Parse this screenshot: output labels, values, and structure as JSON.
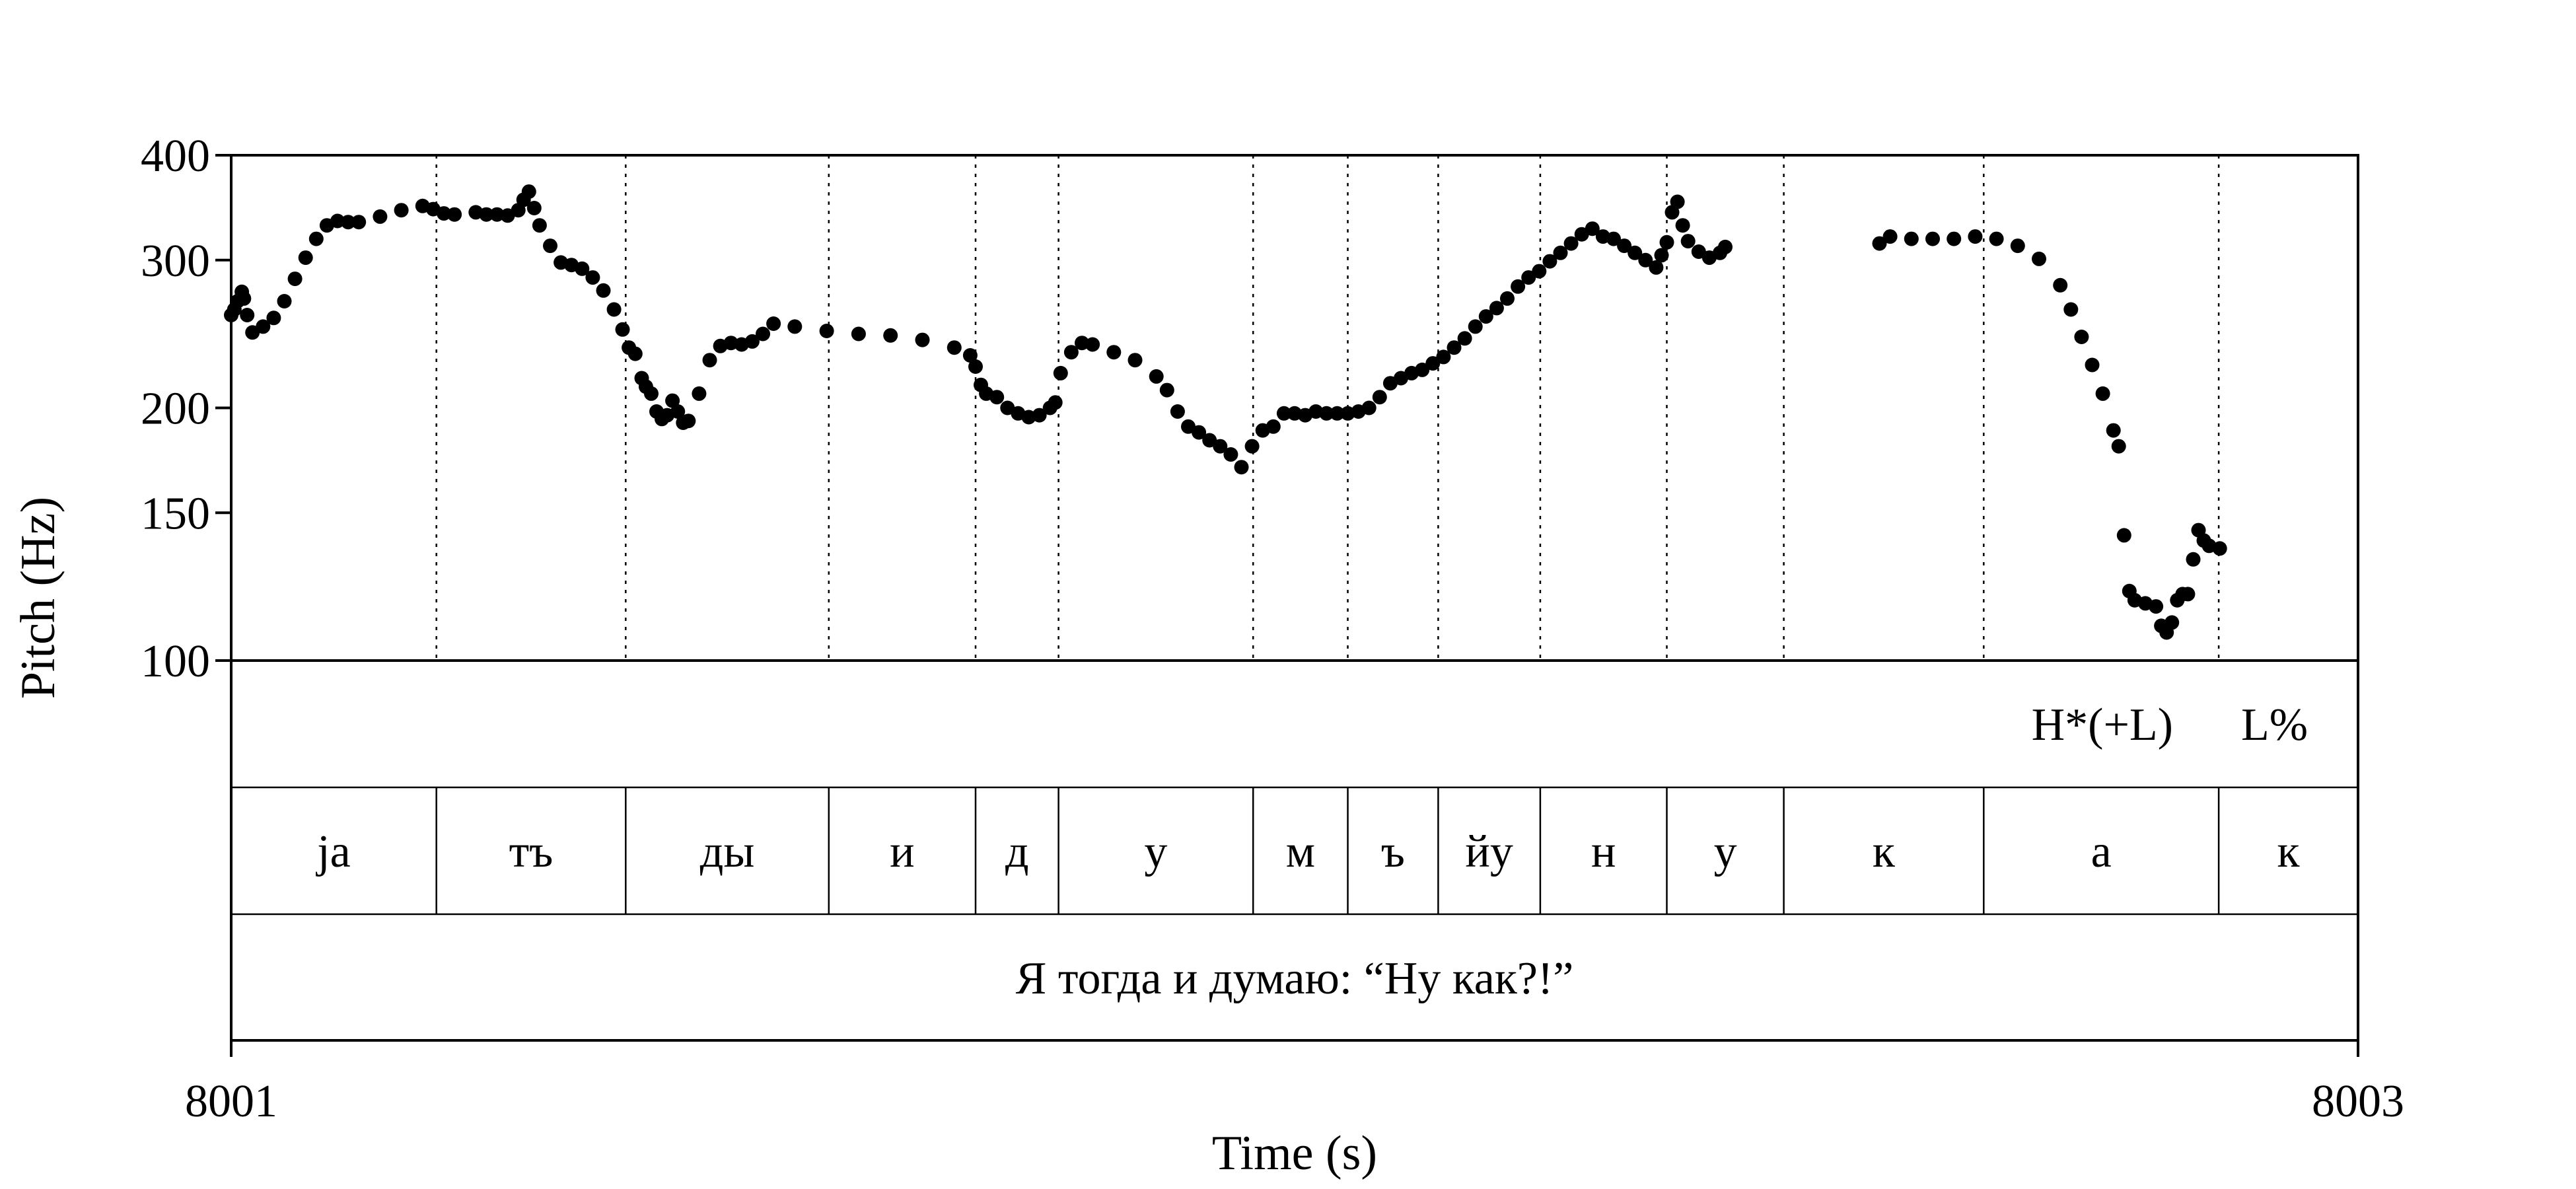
{
  "chart_data": {
    "type": "scatter",
    "xlabel": "Time (s)",
    "ylabel": "Pitch (Hz)",
    "y_scale": "log",
    "xlim": [
      8001,
      8003
    ],
    "ylim": [
      100,
      400
    ],
    "x_tick_labels": [
      "8001",
      "8003"
    ],
    "y_ticks": [
      100,
      150,
      200,
      300,
      400
    ],
    "y_tick_labels": [
      "100",
      "150",
      "200",
      "300",
      "400"
    ],
    "pitch_contour": [
      [
        8001.0,
        258
      ],
      [
        8001.003,
        262
      ],
      [
        8001.006,
        268
      ],
      [
        8001.01,
        275
      ],
      [
        8001.012,
        270
      ],
      [
        8001.015,
        258
      ],
      [
        8001.02,
        246
      ],
      [
        8001.03,
        250
      ],
      [
        8001.04,
        256
      ],
      [
        8001.05,
        268
      ],
      [
        8001.06,
        285
      ],
      [
        8001.07,
        302
      ],
      [
        8001.08,
        318
      ],
      [
        8001.09,
        330
      ],
      [
        8001.1,
        334
      ],
      [
        8001.11,
        333
      ],
      [
        8001.12,
        333
      ],
      [
        8001.14,
        338
      ],
      [
        8001.16,
        344
      ],
      [
        8001.18,
        348
      ],
      [
        8001.19,
        345
      ],
      [
        8001.2,
        341
      ],
      [
        8001.21,
        340
      ],
      [
        8001.23,
        342
      ],
      [
        8001.24,
        340
      ],
      [
        8001.25,
        340
      ],
      [
        8001.26,
        339
      ],
      [
        8001.27,
        344
      ],
      [
        8001.275,
        354
      ],
      [
        8001.28,
        362
      ],
      [
        8001.285,
        346
      ],
      [
        8001.29,
        330
      ],
      [
        8001.3,
        312
      ],
      [
        8001.31,
        298
      ],
      [
        8001.32,
        296
      ],
      [
        8001.33,
        293
      ],
      [
        8001.34,
        286
      ],
      [
        8001.35,
        276
      ],
      [
        8001.36,
        262
      ],
      [
        8001.368,
        248
      ],
      [
        8001.374,
        236
      ],
      [
        8001.38,
        232
      ],
      [
        8001.386,
        217
      ],
      [
        8001.39,
        212
      ],
      [
        8001.395,
        208
      ],
      [
        8001.4,
        198
      ],
      [
        8001.405,
        194
      ],
      [
        8001.41,
        196
      ],
      [
        8001.415,
        204
      ],
      [
        8001.42,
        198
      ],
      [
        8001.425,
        192
      ],
      [
        8001.43,
        193
      ],
      [
        8001.44,
        208
      ],
      [
        8001.45,
        228
      ],
      [
        8001.46,
        237
      ],
      [
        8001.47,
        239
      ],
      [
        8001.48,
        238
      ],
      [
        8001.49,
        240
      ],
      [
        8001.5,
        245
      ],
      [
        8001.51,
        252
      ],
      [
        8001.53,
        250
      ],
      [
        8001.56,
        247
      ],
      [
        8001.59,
        245
      ],
      [
        8001.62,
        244
      ],
      [
        8001.65,
        241
      ],
      [
        8001.68,
        236
      ],
      [
        8001.695,
        231
      ],
      [
        8001.7,
        224
      ],
      [
        8001.705,
        213
      ],
      [
        8001.71,
        208
      ],
      [
        8001.72,
        206
      ],
      [
        8001.73,
        200
      ],
      [
        8001.74,
        197
      ],
      [
        8001.75,
        195
      ],
      [
        8001.76,
        196
      ],
      [
        8001.77,
        200
      ],
      [
        8001.775,
        203
      ],
      [
        8001.78,
        220
      ],
      [
        8001.79,
        233
      ],
      [
        8001.8,
        239
      ],
      [
        8001.81,
        238
      ],
      [
        8001.83,
        233
      ],
      [
        8001.85,
        228
      ],
      [
        8001.87,
        218
      ],
      [
        8001.88,
        210
      ],
      [
        8001.89,
        198
      ],
      [
        8001.9,
        190
      ],
      [
        8001.91,
        187
      ],
      [
        8001.92,
        183
      ],
      [
        8001.93,
        180
      ],
      [
        8001.94,
        176
      ],
      [
        8001.95,
        170
      ],
      [
        8001.96,
        180
      ],
      [
        8001.97,
        188
      ],
      [
        8001.98,
        190
      ],
      [
        8001.99,
        197
      ],
      [
        8002.0,
        197
      ],
      [
        8002.01,
        196
      ],
      [
        8002.02,
        198
      ],
      [
        8002.03,
        197
      ],
      [
        8002.04,
        197
      ],
      [
        8002.05,
        197
      ],
      [
        8002.06,
        198
      ],
      [
        8002.07,
        200
      ],
      [
        8002.08,
        206
      ],
      [
        8002.09,
        214
      ],
      [
        8002.1,
        217
      ],
      [
        8002.11,
        220
      ],
      [
        8002.12,
        222
      ],
      [
        8002.13,
        226
      ],
      [
        8002.14,
        230
      ],
      [
        8002.15,
        236
      ],
      [
        8002.16,
        242
      ],
      [
        8002.17,
        250
      ],
      [
        8002.18,
        257
      ],
      [
        8002.19,
        263
      ],
      [
        8002.2,
        270
      ],
      [
        8002.21,
        279
      ],
      [
        8002.22,
        286
      ],
      [
        8002.23,
        291
      ],
      [
        8002.24,
        299
      ],
      [
        8002.25,
        306
      ],
      [
        8002.26,
        314
      ],
      [
        8002.27,
        322
      ],
      [
        8002.28,
        327
      ],
      [
        8002.29,
        320
      ],
      [
        8002.3,
        318
      ],
      [
        8002.31,
        312
      ],
      [
        8002.32,
        306
      ],
      [
        8002.33,
        300
      ],
      [
        8002.34,
        294
      ],
      [
        8002.345,
        304
      ],
      [
        8002.35,
        315
      ],
      [
        8002.355,
        342
      ],
      [
        8002.36,
        352
      ],
      [
        8002.365,
        330
      ],
      [
        8002.37,
        316
      ],
      [
        8002.38,
        307
      ],
      [
        8002.39,
        302
      ],
      [
        8002.4,
        306
      ],
      [
        8002.405,
        311
      ],
      [
        8002.55,
        314
      ],
      [
        8002.56,
        320
      ],
      [
        8002.58,
        318
      ],
      [
        8002.6,
        318
      ],
      [
        8002.62,
        318
      ],
      [
        8002.64,
        320
      ],
      [
        8002.66,
        318
      ],
      [
        8002.68,
        312
      ],
      [
        8002.7,
        301
      ],
      [
        8002.72,
        280
      ],
      [
        8002.73,
        262
      ],
      [
        8002.74,
        243
      ],
      [
        8002.75,
        225
      ],
      [
        8002.76,
        208
      ],
      [
        8002.77,
        188
      ],
      [
        8002.775,
        180
      ],
      [
        8002.78,
        141
      ],
      [
        8002.785,
        121
      ],
      [
        8002.79,
        118
      ],
      [
        8002.8,
        117
      ],
      [
        8002.81,
        116
      ],
      [
        8002.815,
        110
      ],
      [
        8002.82,
        108
      ],
      [
        8002.825,
        111
      ],
      [
        8002.83,
        118
      ],
      [
        8002.835,
        120
      ],
      [
        8002.84,
        120
      ],
      [
        8002.845,
        132
      ],
      [
        8002.85,
        143
      ],
      [
        8002.855,
        139
      ],
      [
        8002.86,
        137
      ],
      [
        8002.87,
        136
      ]
    ],
    "tiers": [
      {
        "intervals": [
          {
            "start": 8002.644,
            "end": 8002.875,
            "text": "H*(+L)"
          },
          {
            "start": 8002.875,
            "end": 8002.968,
            "text": "L%"
          }
        ]
      },
      {
        "intervals": [
          {
            "start": 8001.0,
            "end": 8001.193,
            "text": "ja"
          },
          {
            "start": 8001.193,
            "end": 8001.371,
            "text": "тъ"
          },
          {
            "start": 8001.371,
            "end": 8001.562,
            "text": "ды"
          },
          {
            "start": 8001.562,
            "end": 8001.7,
            "text": "и"
          },
          {
            "start": 8001.7,
            "end": 8001.778,
            "text": "д"
          },
          {
            "start": 8001.778,
            "end": 8001.961,
            "text": "у"
          },
          {
            "start": 8001.961,
            "end": 8002.05,
            "text": "м"
          },
          {
            "start": 8002.05,
            "end": 8002.135,
            "text": "ъ"
          },
          {
            "start": 8002.135,
            "end": 8002.231,
            "text": "йу"
          },
          {
            "start": 8002.231,
            "end": 8002.35,
            "text": "н"
          },
          {
            "start": 8002.35,
            "end": 8002.46,
            "text": "у"
          },
          {
            "start": 8002.46,
            "end": 8002.648,
            "text": "к"
          },
          {
            "start": 8002.648,
            "end": 8002.869,
            "text": "а"
          },
          {
            "start": 8002.869,
            "end": 8003.0,
            "text": "к"
          }
        ]
      },
      {
        "intervals": [
          {
            "start": 8001.0,
            "end": 8003.0,
            "text": "Я тогда и думаю: “Ну как?!”"
          }
        ]
      }
    ]
  }
}
